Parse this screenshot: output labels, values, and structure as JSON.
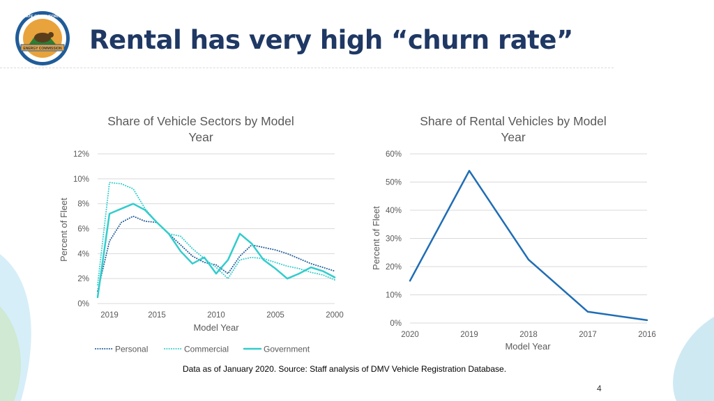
{
  "slide": {
    "title": "Rental has very high “churn rate”",
    "logo_text_top": "STATE OF CALIFORNIA",
    "logo_text_bottom": "ENERGY COMMISSION",
    "note": "Data as of January 2020. Source: Staff analysis of DMV Vehicle Registration Database.",
    "page_number": "4",
    "colors": {
      "title": "#1f3864",
      "brand_blue": "#1f5c99",
      "gold": "#e8a33d",
      "teal": "#33cccc"
    }
  },
  "chart_data": [
    {
      "type": "line",
      "title": "Share of Vehicle Sectors by Model Year",
      "title_lines": [
        "Share of Vehicle Sectors by Model",
        "Year"
      ],
      "xlabel": "Model Year",
      "ylabel": "Percent of Fleet",
      "x": [
        2020,
        2019,
        2018,
        2017,
        2016,
        2015,
        2014,
        2013,
        2012,
        2011,
        2010,
        2009,
        2008,
        2007,
        2006,
        2005,
        2004,
        2003,
        2002,
        2001,
        2000
      ],
      "x_tick_values": [
        2019,
        2015,
        2010,
        2005,
        2000
      ],
      "x_tick_labels": [
        "2019",
        "2015",
        "2010",
        "2005",
        "2000"
      ],
      "xlim": [
        2020,
        2000
      ],
      "ylim": [
        0,
        12
      ],
      "y_ticks": [
        0,
        2,
        4,
        6,
        8,
        10,
        12
      ],
      "y_tick_labels": [
        "0%",
        "2%",
        "4%",
        "6%",
        "8%",
        "10%",
        "12%"
      ],
      "grid": true,
      "legend": "bottom",
      "series": [
        {
          "name": "Personal",
          "style": "dotted",
          "color": "#1f5c99",
          "values": [
            1.0,
            5.0,
            6.5,
            7.0,
            6.6,
            6.5,
            5.6,
            4.7,
            3.8,
            3.3,
            3.1,
            2.4,
            3.8,
            4.7,
            4.5,
            4.3,
            4.0,
            3.6,
            3.2,
            2.9,
            2.6
          ]
        },
        {
          "name": "Commercial",
          "style": "dotted",
          "color": "#33cccc",
          "values": [
            1.5,
            9.7,
            9.6,
            9.2,
            7.6,
            6.5,
            5.6,
            5.4,
            4.4,
            3.6,
            2.9,
            2.0,
            3.5,
            3.7,
            3.6,
            3.3,
            3.0,
            2.8,
            2.5,
            2.3,
            1.9
          ]
        },
        {
          "name": "Government",
          "style": "solid",
          "color": "#33cccc",
          "values": [
            0.5,
            7.2,
            7.6,
            8.0,
            7.5,
            6.5,
            5.6,
            4.2,
            3.2,
            3.7,
            2.4,
            3.5,
            5.6,
            4.8,
            3.5,
            2.8,
            2.0,
            2.4,
            2.9,
            2.6,
            2.1
          ]
        }
      ]
    },
    {
      "type": "line",
      "title": "Share of Rental Vehicles by Model Year",
      "title_lines": [
        "Share of Rental Vehicles by Model",
        "Year"
      ],
      "xlabel": "Model Year",
      "ylabel": "Percent of Fleet",
      "x": [
        2020,
        2019,
        2018,
        2017,
        2016
      ],
      "x_tick_labels": [
        "2020",
        "2019",
        "2018",
        "2017",
        "2016"
      ],
      "xlim": [
        2020,
        2016
      ],
      "ylim": [
        0,
        60
      ],
      "y_ticks": [
        0,
        10,
        20,
        30,
        40,
        50,
        60
      ],
      "y_tick_labels": [
        "0%",
        "10%",
        "20%",
        "30%",
        "40%",
        "50%",
        "60%"
      ],
      "grid": true,
      "series": [
        {
          "color": "#1f6db5",
          "values": [
            15,
            54,
            22.5,
            4,
            1
          ]
        }
      ]
    }
  ]
}
